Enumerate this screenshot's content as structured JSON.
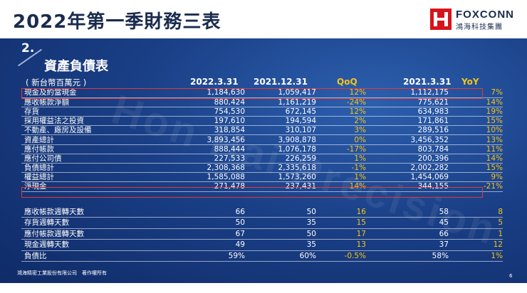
{
  "slide": {
    "title": "2022年第一季財務三表",
    "section_number": "2.",
    "section_title": "資產負債表",
    "watermark": "Hon Hai Precision",
    "footer_left": "鴻海精密工業股份有限公司　著作權所有",
    "page_number": "6"
  },
  "logo": {
    "brand": "FOXCONN",
    "subtitle": "鴻海科技集團",
    "brand_color": "#d7141a"
  },
  "table": {
    "unit_label": "( 新台幣百萬元 )",
    "headers": [
      "2022.3.31",
      "2021.12.31",
      "QoQ",
      "2021.3.31",
      "YoY"
    ],
    "rows": [
      [
        "現金及約當現金",
        "1,184,630",
        "1,059,417",
        "12%",
        "1,112,175",
        "7%"
      ],
      [
        "應收帳款淨額",
        "880,424",
        "1,161,219",
        "-24%",
        "775,621",
        "14%"
      ],
      [
        "存貨",
        "754,530",
        "672,145",
        "12%",
        "634,983",
        "19%"
      ],
      [
        "採用權益法之投資",
        "197,610",
        "194,594",
        "2%",
        "171,861",
        "15%"
      ],
      [
        "不動產、廠房及設備",
        "318,854",
        "310,107",
        "3%",
        "289,516",
        "10%"
      ],
      [
        "資產總計",
        "3,893,456",
        "3,908,878",
        "0%",
        "3,456,352",
        "13%"
      ],
      [
        "應付帳款",
        "888,444",
        "1,076,178",
        "-17%",
        "803,784",
        "11%"
      ],
      [
        "應付公司債",
        "227,533",
        "226,259",
        "1%",
        "200,396",
        "14%"
      ],
      [
        "負債總計",
        "2,308,368",
        "2,335,618",
        "-1%",
        "2,002,282",
        "15%"
      ],
      [
        "權益總計",
        "1,585,088",
        "1,573,260",
        "1%",
        "1,454,069",
        "9%"
      ],
      [
        "淨現金",
        "271,478",
        "237,431",
        "14%",
        "344,155",
        "-21%"
      ]
    ],
    "rows2": [
      [
        "應收帳款週轉天數",
        "66",
        "50",
        "16",
        "58",
        "8"
      ],
      [
        "存貨週轉天數",
        "50",
        "35",
        "15",
        "45",
        "5"
      ],
      [
        "應付帳款週轉天數",
        "67",
        "50",
        "17",
        "66",
        "1"
      ],
      [
        "現金週轉天數",
        "49",
        "35",
        "13",
        "37",
        "12"
      ],
      [
        "負債比",
        "59%",
        "60%",
        "-0.5%",
        "58%",
        "1%"
      ]
    ]
  },
  "colors": {
    "background": "#1a3f86",
    "accent_yellow": "#f5c518",
    "highlight_red": "#e53935"
  }
}
